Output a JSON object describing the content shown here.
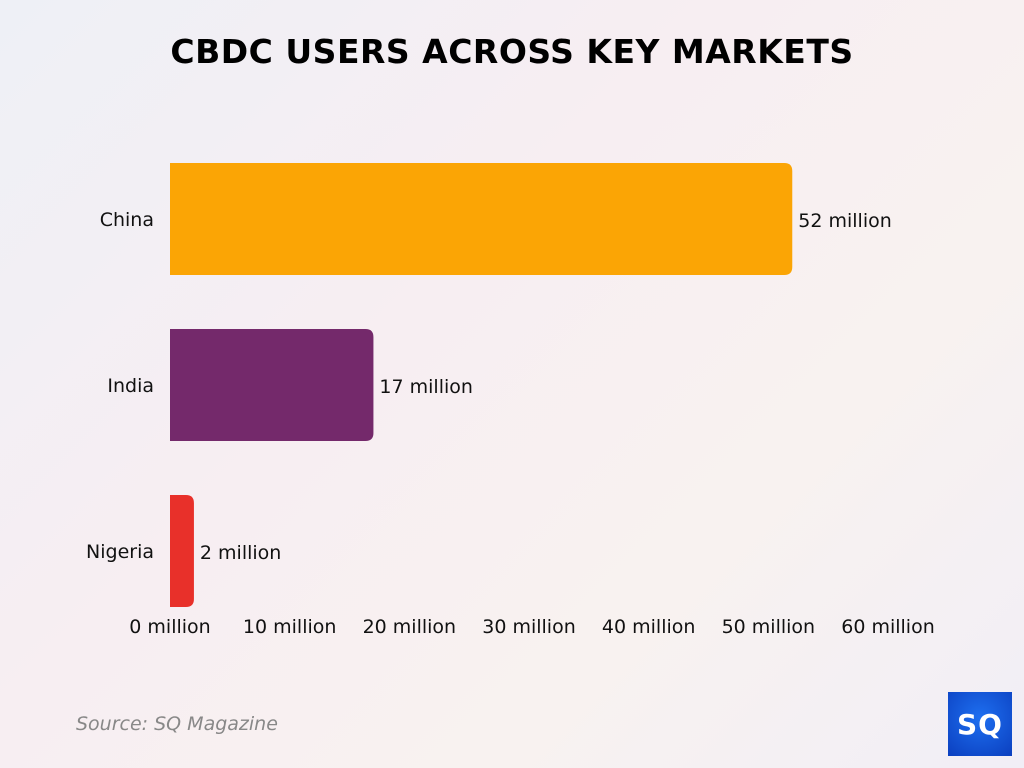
{
  "chart_data": {
    "type": "bar",
    "orientation": "horizontal",
    "title": "CBDC USERS ACROSS KEY MARKETS",
    "categories": [
      "China",
      "India",
      "Nigeria"
    ],
    "values": [
      52,
      17,
      2
    ],
    "data_labels": [
      "52 million",
      "17 million",
      "2 million"
    ],
    "colors": [
      "#fba505",
      "#74296b",
      "#e8302a"
    ],
    "xlim": [
      0,
      60
    ],
    "x_ticks": [
      0,
      10,
      20,
      30,
      40,
      50,
      60
    ],
    "x_tick_labels": [
      "0 million",
      "10 million",
      "20 million",
      "30 million",
      "40 million",
      "50 million",
      "60 million"
    ],
    "xlabel": "",
    "ylabel": "",
    "grid": false
  },
  "source": "Source: SQ Magazine",
  "logo": "SQ"
}
